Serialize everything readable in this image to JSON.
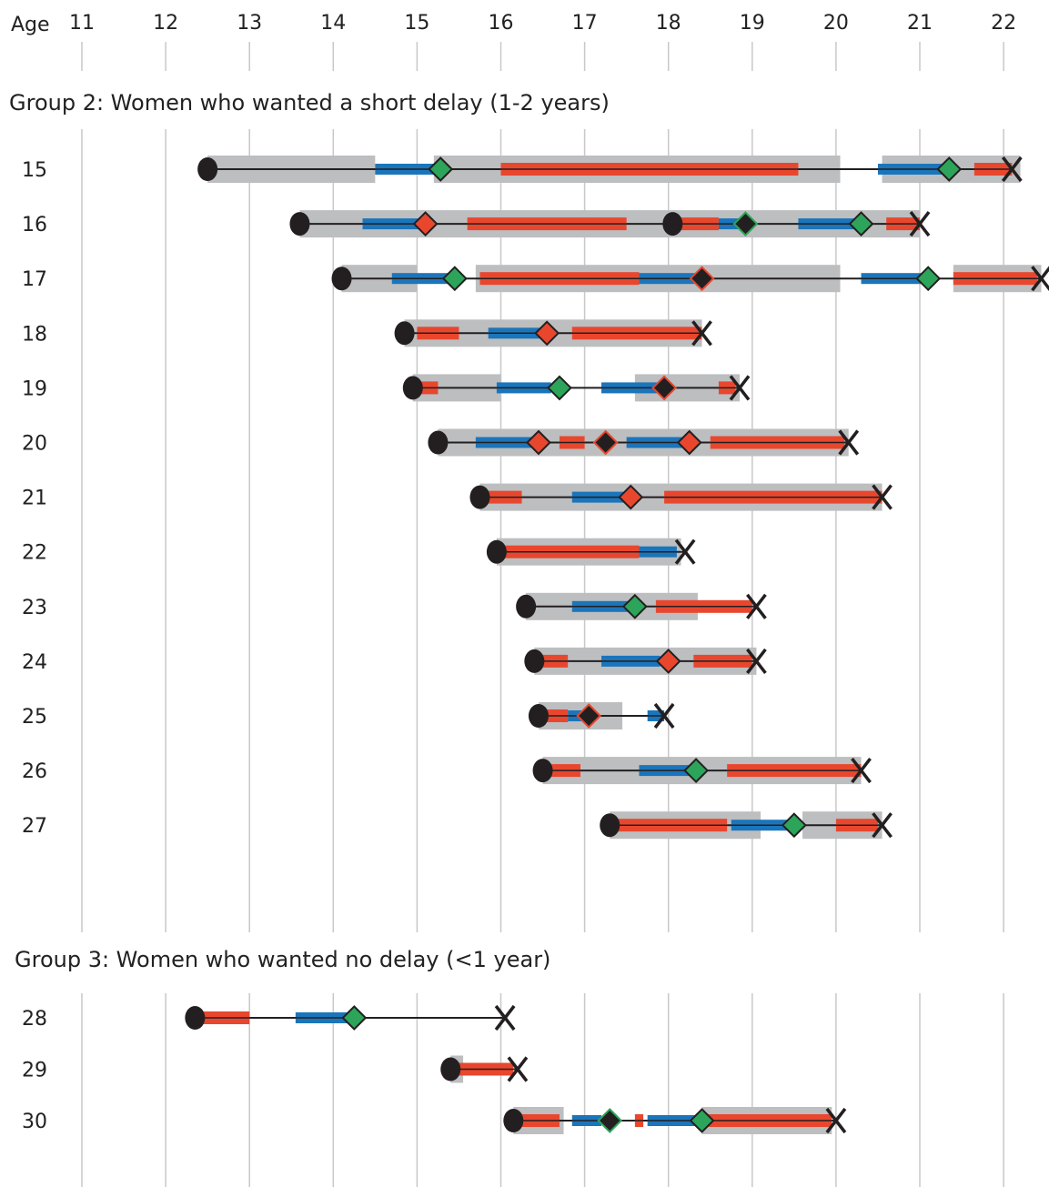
{
  "colors": {
    "grid": "#c8c8c8",
    "band": "#bcbec0",
    "red": "#e8472e",
    "blue": "#1b75bb",
    "green": "#2ca55a",
    "black": "#231f20",
    "line": "#231f20"
  },
  "chart_data": {
    "type": "timeline",
    "x_label": "Age",
    "x_ticks": [
      11,
      12,
      13,
      14,
      15,
      16,
      17,
      18,
      19,
      20,
      21,
      22
    ],
    "xlim": [
      10.6,
      22.5
    ],
    "groups": [
      {
        "title": "Group 2: Women who wanted a short delay (1-2 years)",
        "rows": [
          {
            "id": "15",
            "start": 12.5,
            "end": 22.1,
            "gray": [
              [
                12.5,
                14.5
              ],
              [
                15.2,
                20.05
              ],
              [
                20.55,
                22.2
              ]
            ],
            "blue": [
              [
                14.5,
                15.2
              ],
              [
                20.5,
                21.35
              ]
            ],
            "red": [
              [
                16.0,
                19.55
              ],
              [
                21.65,
                22.1
              ]
            ],
            "markers": [
              {
                "x": 15.28,
                "type": "green"
              },
              {
                "x": 21.35,
                "type": "green"
              }
            ]
          },
          {
            "id": "16",
            "start": 13.6,
            "end": 21.0,
            "gray": [
              [
                13.6,
                21.0
              ]
            ],
            "blue": [
              [
                14.35,
                15.1
              ],
              [
                18.6,
                18.9
              ],
              [
                19.55,
                20.3
              ]
            ],
            "red": [
              [
                15.6,
                17.5
              ],
              [
                18.05,
                18.6
              ],
              [
                20.6,
                21.0
              ]
            ],
            "markers": [
              {
                "x": 15.1,
                "type": "red"
              },
              {
                "x": 18.05,
                "type": "dot"
              },
              {
                "x": 18.92,
                "type": "black-green"
              },
              {
                "x": 20.3,
                "type": "green"
              }
            ]
          },
          {
            "id": "17",
            "start": 14.1,
            "end": 22.45,
            "gray": [
              [
                14.1,
                15.0
              ],
              [
                15.7,
                20.05
              ],
              [
                21.4,
                22.45
              ]
            ],
            "blue": [
              [
                14.7,
                15.45
              ],
              [
                17.65,
                18.4
              ],
              [
                20.3,
                21.1
              ]
            ],
            "red": [
              [
                15.75,
                17.65
              ],
              [
                21.4,
                22.4
              ]
            ],
            "markers": [
              {
                "x": 15.45,
                "type": "green"
              },
              {
                "x": 18.4,
                "type": "black-red"
              },
              {
                "x": 21.1,
                "type": "green"
              }
            ]
          },
          {
            "id": "18",
            "start": 14.85,
            "end": 18.4,
            "gray": [
              [
                14.85,
                18.4
              ]
            ],
            "blue": [
              [
                15.85,
                16.5
              ]
            ],
            "red": [
              [
                15.0,
                15.5
              ],
              [
                16.85,
                18.4
              ]
            ],
            "markers": [
              {
                "x": 16.55,
                "type": "red"
              }
            ]
          },
          {
            "id": "19",
            "start": 14.95,
            "end": 18.85,
            "gray": [
              [
                14.95,
                16.0
              ],
              [
                17.6,
                18.85
              ]
            ],
            "blue": [
              [
                15.95,
                16.6
              ],
              [
                17.2,
                17.9
              ]
            ],
            "red": [
              [
                15.05,
                15.25
              ],
              [
                18.6,
                18.8
              ]
            ],
            "markers": [
              {
                "x": 16.7,
                "type": "green"
              },
              {
                "x": 17.95,
                "type": "black-red"
              }
            ]
          },
          {
            "id": "20",
            "start": 15.25,
            "end": 20.15,
            "gray": [
              [
                15.25,
                20.15
              ]
            ],
            "blue": [
              [
                15.7,
                16.4
              ],
              [
                17.5,
                18.2
              ]
            ],
            "red": [
              [
                16.7,
                17.0
              ],
              [
                18.5,
                20.1
              ]
            ],
            "markers": [
              {
                "x": 16.45,
                "type": "red"
              },
              {
                "x": 17.25,
                "type": "black-red"
              },
              {
                "x": 18.25,
                "type": "red"
              }
            ]
          },
          {
            "id": "21",
            "start": 15.75,
            "end": 20.55,
            "gray": [
              [
                15.75,
                20.55
              ]
            ],
            "blue": [
              [
                16.85,
                17.5
              ]
            ],
            "red": [
              [
                15.85,
                16.25
              ],
              [
                17.95,
                20.55
              ]
            ],
            "markers": [
              {
                "x": 17.55,
                "type": "red"
              }
            ]
          },
          {
            "id": "22",
            "start": 15.95,
            "end": 18.2,
            "gray": [
              [
                15.95,
                18.15
              ]
            ],
            "blue": [
              [
                17.65,
                18.1
              ]
            ],
            "red": [
              [
                16.05,
                17.65
              ]
            ],
            "markers": []
          },
          {
            "id": "23",
            "start": 16.3,
            "end": 19.05,
            "gray": [
              [
                16.3,
                18.35
              ]
            ],
            "blue": [
              [
                16.85,
                17.55
              ]
            ],
            "red": [
              [
                17.85,
                19.0
              ]
            ],
            "markers": [
              {
                "x": 17.6,
                "type": "green"
              }
            ]
          },
          {
            "id": "24",
            "start": 16.4,
            "end": 19.05,
            "gray": [
              [
                16.4,
                19.05
              ]
            ],
            "blue": [
              [
                17.2,
                17.9
              ]
            ],
            "red": [
              [
                16.5,
                16.8
              ],
              [
                18.3,
                19.0
              ]
            ],
            "markers": [
              {
                "x": 18.0,
                "type": "red"
              }
            ]
          },
          {
            "id": "25",
            "start": 16.45,
            "end": 17.95,
            "gray": [
              [
                16.45,
                17.45
              ]
            ],
            "blue": [
              [
                16.8,
                17.0
              ],
              [
                17.75,
                17.95
              ]
            ],
            "red": [
              [
                16.55,
                16.8
              ]
            ],
            "markers": [
              {
                "x": 17.05,
                "type": "black-red"
              }
            ]
          },
          {
            "id": "26",
            "start": 16.5,
            "end": 20.3,
            "gray": [
              [
                16.5,
                20.3
              ]
            ],
            "blue": [
              [
                17.65,
                18.3
              ]
            ],
            "red": [
              [
                16.6,
                16.95
              ],
              [
                18.7,
                20.3
              ]
            ],
            "markers": [
              {
                "x": 18.33,
                "type": "green"
              }
            ]
          },
          {
            "id": "27",
            "start": 17.3,
            "end": 20.55,
            "gray": [
              [
                17.3,
                19.1
              ],
              [
                19.6,
                20.55
              ]
            ],
            "blue": [
              [
                18.75,
                19.45
              ]
            ],
            "red": [
              [
                17.4,
                18.7
              ],
              [
                20.0,
                20.5
              ]
            ],
            "markers": [
              {
                "x": 19.5,
                "type": "green"
              }
            ]
          }
        ]
      },
      {
        "title": "Group 3: Women who wanted no delay (<1 year)",
        "rows": [
          {
            "id": "28",
            "start": 12.35,
            "end": 16.05,
            "gray": [],
            "blue": [
              [
                13.55,
                14.2
              ]
            ],
            "red": [
              [
                12.45,
                13.0
              ]
            ],
            "markers": [
              {
                "x": 14.25,
                "type": "green"
              }
            ]
          },
          {
            "id": "29",
            "start": 15.4,
            "end": 16.2,
            "gray": [
              [
                15.4,
                15.55
              ]
            ],
            "blue": [],
            "red": [
              [
                15.5,
                16.15
              ]
            ],
            "markers": []
          },
          {
            "id": "30",
            "start": 16.15,
            "end": 20.0,
            "gray": [
              [
                16.15,
                16.75
              ],
              [
                18.4,
                19.95
              ]
            ],
            "blue": [
              [
                16.85,
                17.2
              ],
              [
                17.75,
                18.35
              ]
            ],
            "red": [
              [
                16.25,
                16.7
              ],
              [
                17.6,
                17.7
              ],
              [
                18.45,
                19.95
              ]
            ],
            "markers": [
              {
                "x": 17.3,
                "type": "black-green"
              },
              {
                "x": 18.4,
                "type": "green"
              }
            ]
          }
        ]
      }
    ]
  }
}
